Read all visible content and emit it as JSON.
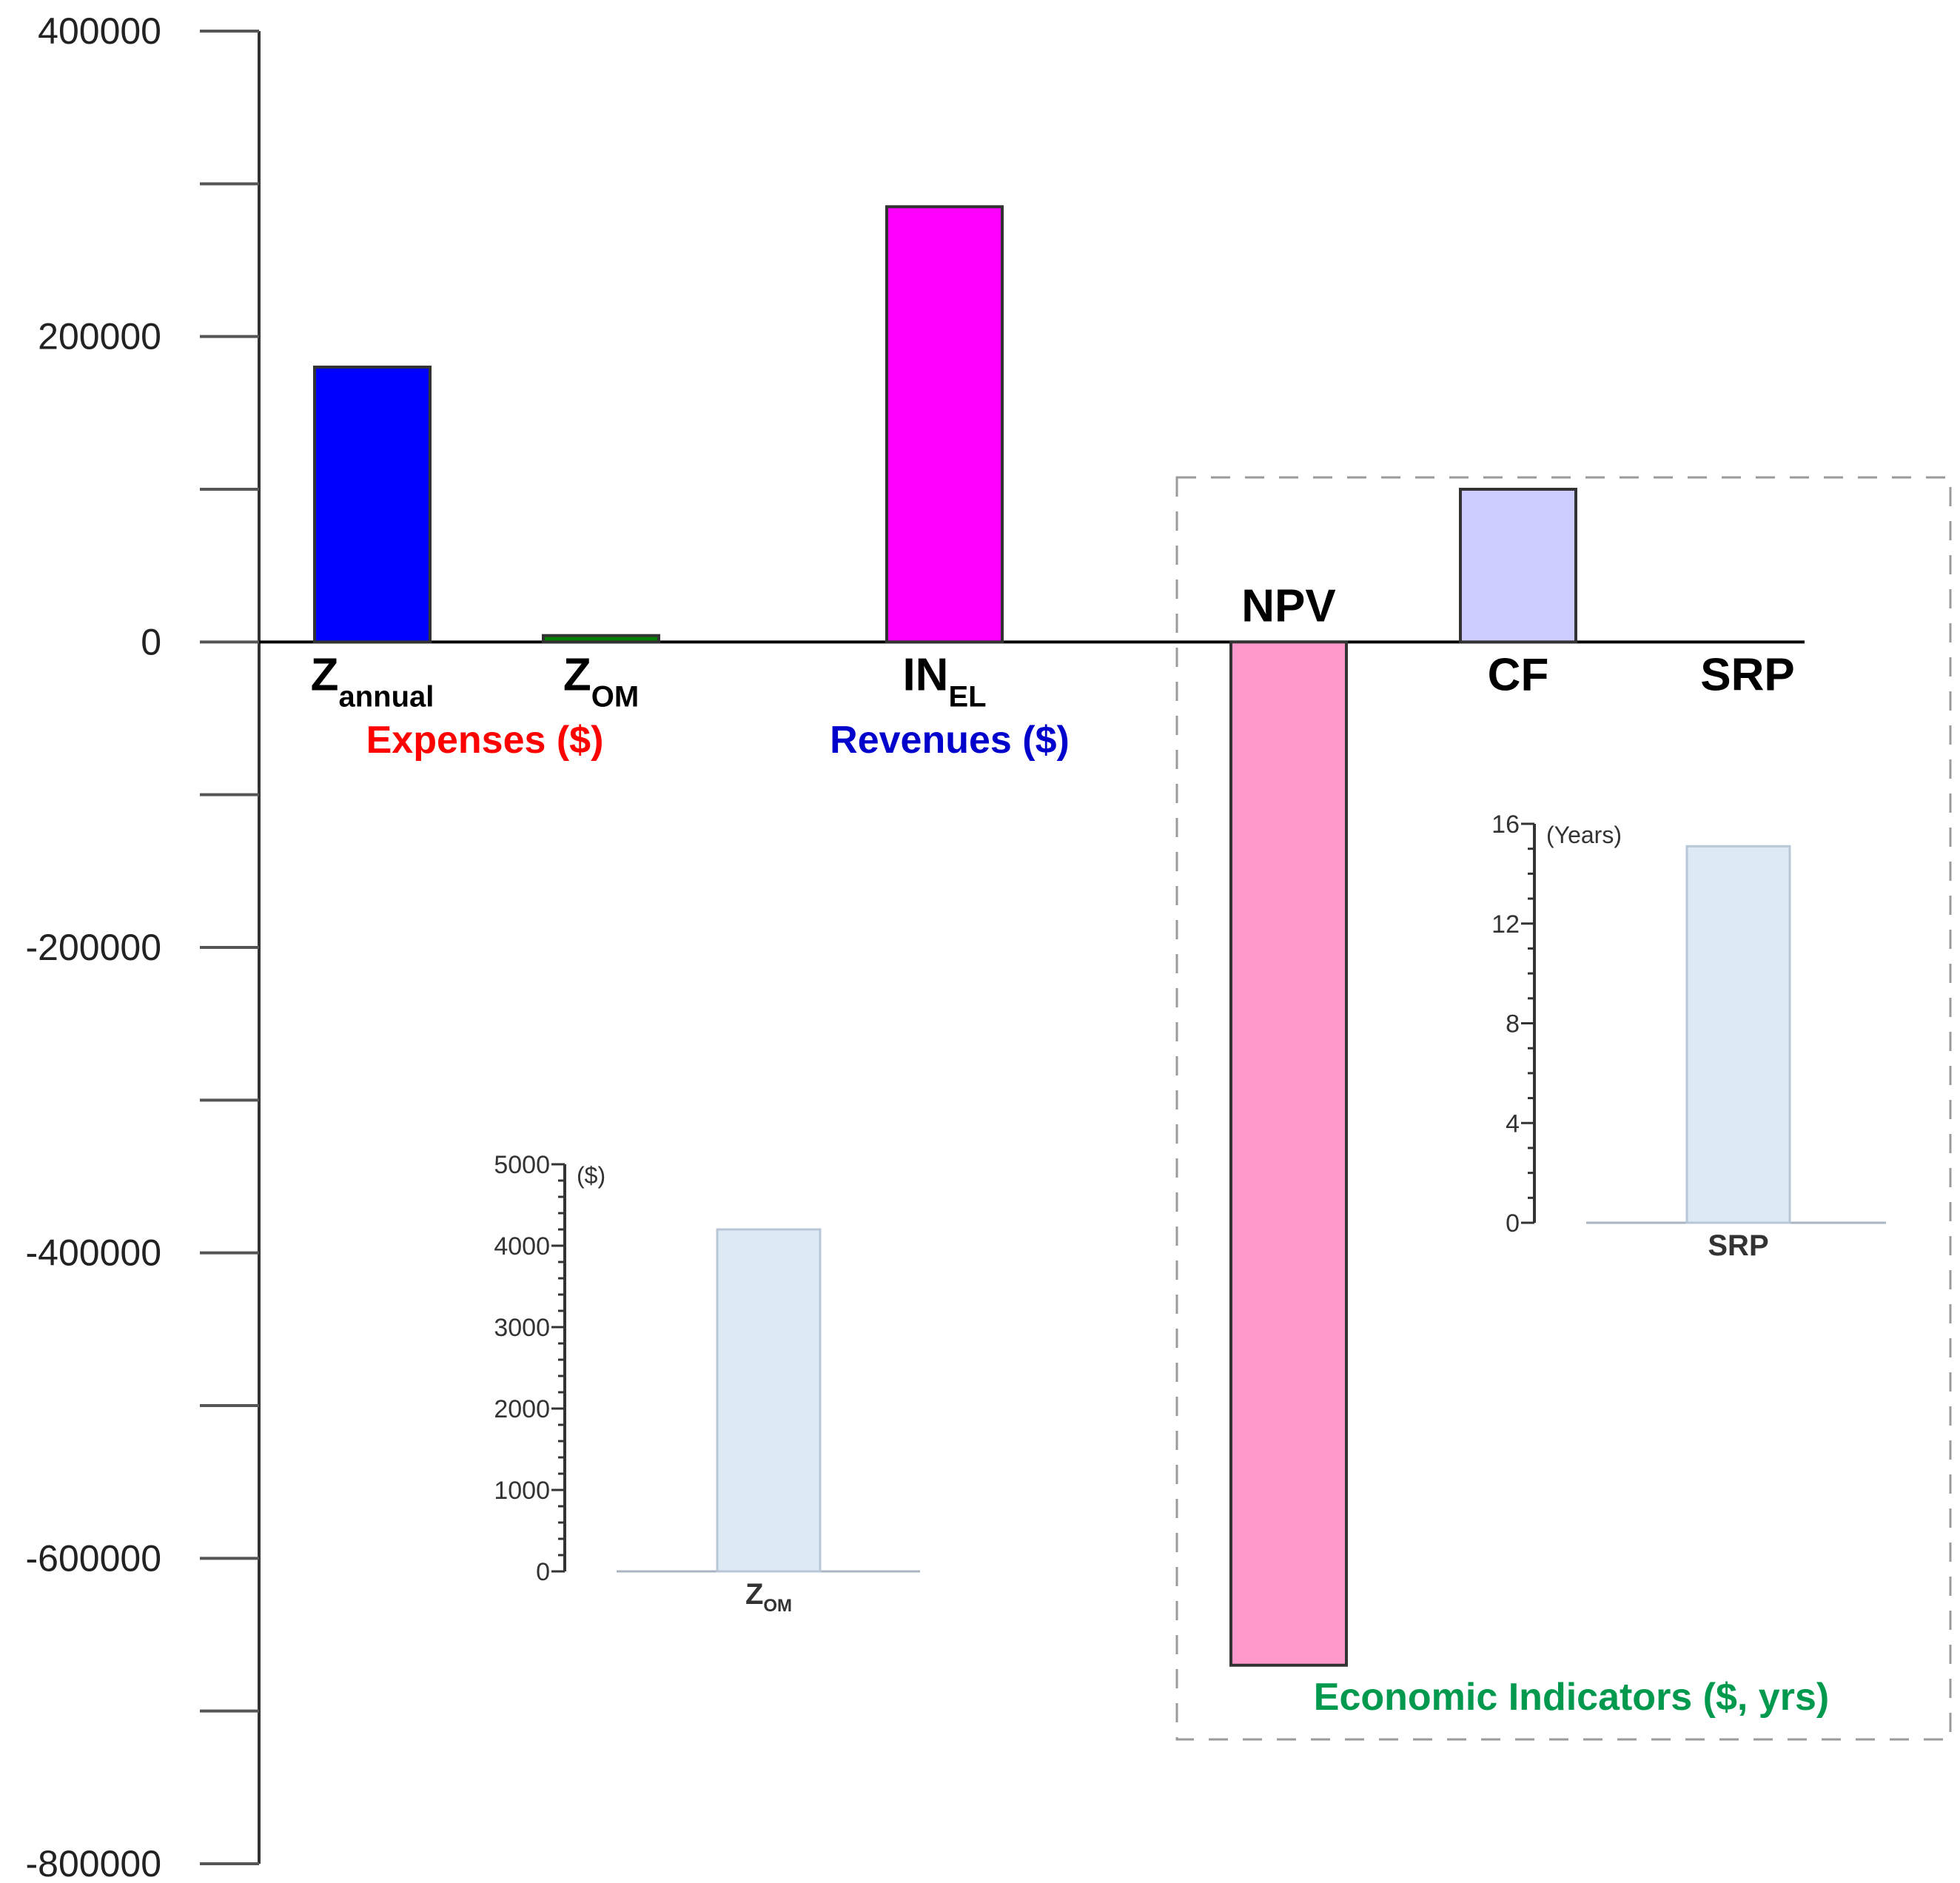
{
  "chart_data": [
    {
      "type": "bar",
      "title": "",
      "xlabel": "",
      "ylabel": "",
      "ylim": [
        -800000,
        400000
      ],
      "yticks": [
        400000,
        200000,
        0,
        -200000,
        -400000,
        -600000,
        -800000
      ],
      "ytick_labels": [
        "400000",
        "200000",
        "0",
        "-200000",
        "-400000",
        "-600000",
        "-800000"
      ],
      "categories": [
        {
          "key": "z_annual",
          "base": "Z",
          "sub": "annual",
          "value": 180000,
          "color": "#0000ff"
        },
        {
          "key": "z_om",
          "base": "Z",
          "sub": "OM",
          "value": 4200,
          "color": "#008000"
        },
        {
          "key": "in_el",
          "base": "IN",
          "sub": "EL",
          "value": 285000,
          "color": "#ff00ff"
        },
        {
          "key": "npv",
          "base": "NPV",
          "sub": "",
          "value": -670000,
          "color": "#ff99cc"
        },
        {
          "key": "cf",
          "base": "CF",
          "sub": "",
          "value": 100000,
          "color": "#ccccff"
        },
        {
          "key": "srp",
          "base": "SRP",
          "sub": "",
          "value": 0,
          "color": "#ffffff"
        }
      ],
      "groups": [
        {
          "key": "expenses",
          "label": "Expenses ($)",
          "color": "#ff0000"
        },
        {
          "key": "revenues",
          "label": "Revenues ($)",
          "color": "#0000cc"
        },
        {
          "key": "economic",
          "label": "Economic Indicators ($, yrs)",
          "color": "#00994d"
        }
      ]
    },
    {
      "type": "bar",
      "title": "",
      "unit_label": "($)",
      "ylim": [
        0,
        5000
      ],
      "yticks": [
        0,
        1000,
        2000,
        3000,
        4000,
        5000
      ],
      "ytick_labels": [
        "0",
        "1000",
        "2000",
        "3000",
        "4000",
        "5000"
      ],
      "categories": [
        {
          "base": "Z",
          "sub": "OM",
          "value": 4200,
          "color": "#dde9f5"
        }
      ]
    },
    {
      "type": "bar",
      "title": "",
      "unit_label": "(Years)",
      "ylim": [
        0,
        16
      ],
      "yticks": [
        0,
        4,
        8,
        12,
        16
      ],
      "ytick_labels": [
        "0",
        "4",
        "8",
        "12",
        "16"
      ],
      "categories": [
        {
          "base": "SRP",
          "sub": "",
          "value": 15.1,
          "color": "#dde9f5"
        }
      ]
    }
  ]
}
